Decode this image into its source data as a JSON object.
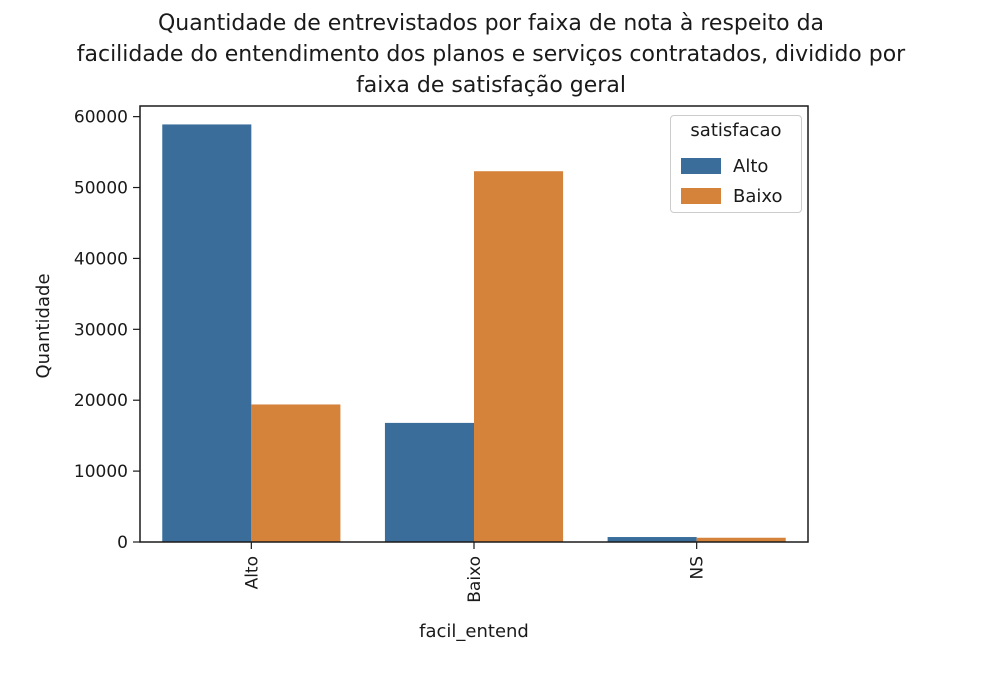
{
  "chart_data": {
    "type": "bar",
    "title_lines": [
      "Quantidade de entrevistados por faixa de nota à respeito da",
      "facilidade do entendimento dos planos e serviços contratados, dividido por",
      "faixa de satisfação geral"
    ],
    "xlabel": "facil_entend",
    "ylabel": "Quantidade",
    "categories": [
      "Alto",
      "Baixo",
      "NS"
    ],
    "series": [
      {
        "name": "Alto",
        "color": "#3a6d9a",
        "values": [
          58900,
          16800,
          700
        ]
      },
      {
        "name": "Baixo",
        "color": "#d5823b",
        "values": [
          19400,
          52300,
          600
        ]
      }
    ],
    "ylim": [
      0,
      61500
    ],
    "yticks": [
      0,
      10000,
      20000,
      30000,
      40000,
      50000,
      60000
    ],
    "legend": {
      "title": "satisfacao",
      "position": "top-right"
    },
    "grid": false
  }
}
